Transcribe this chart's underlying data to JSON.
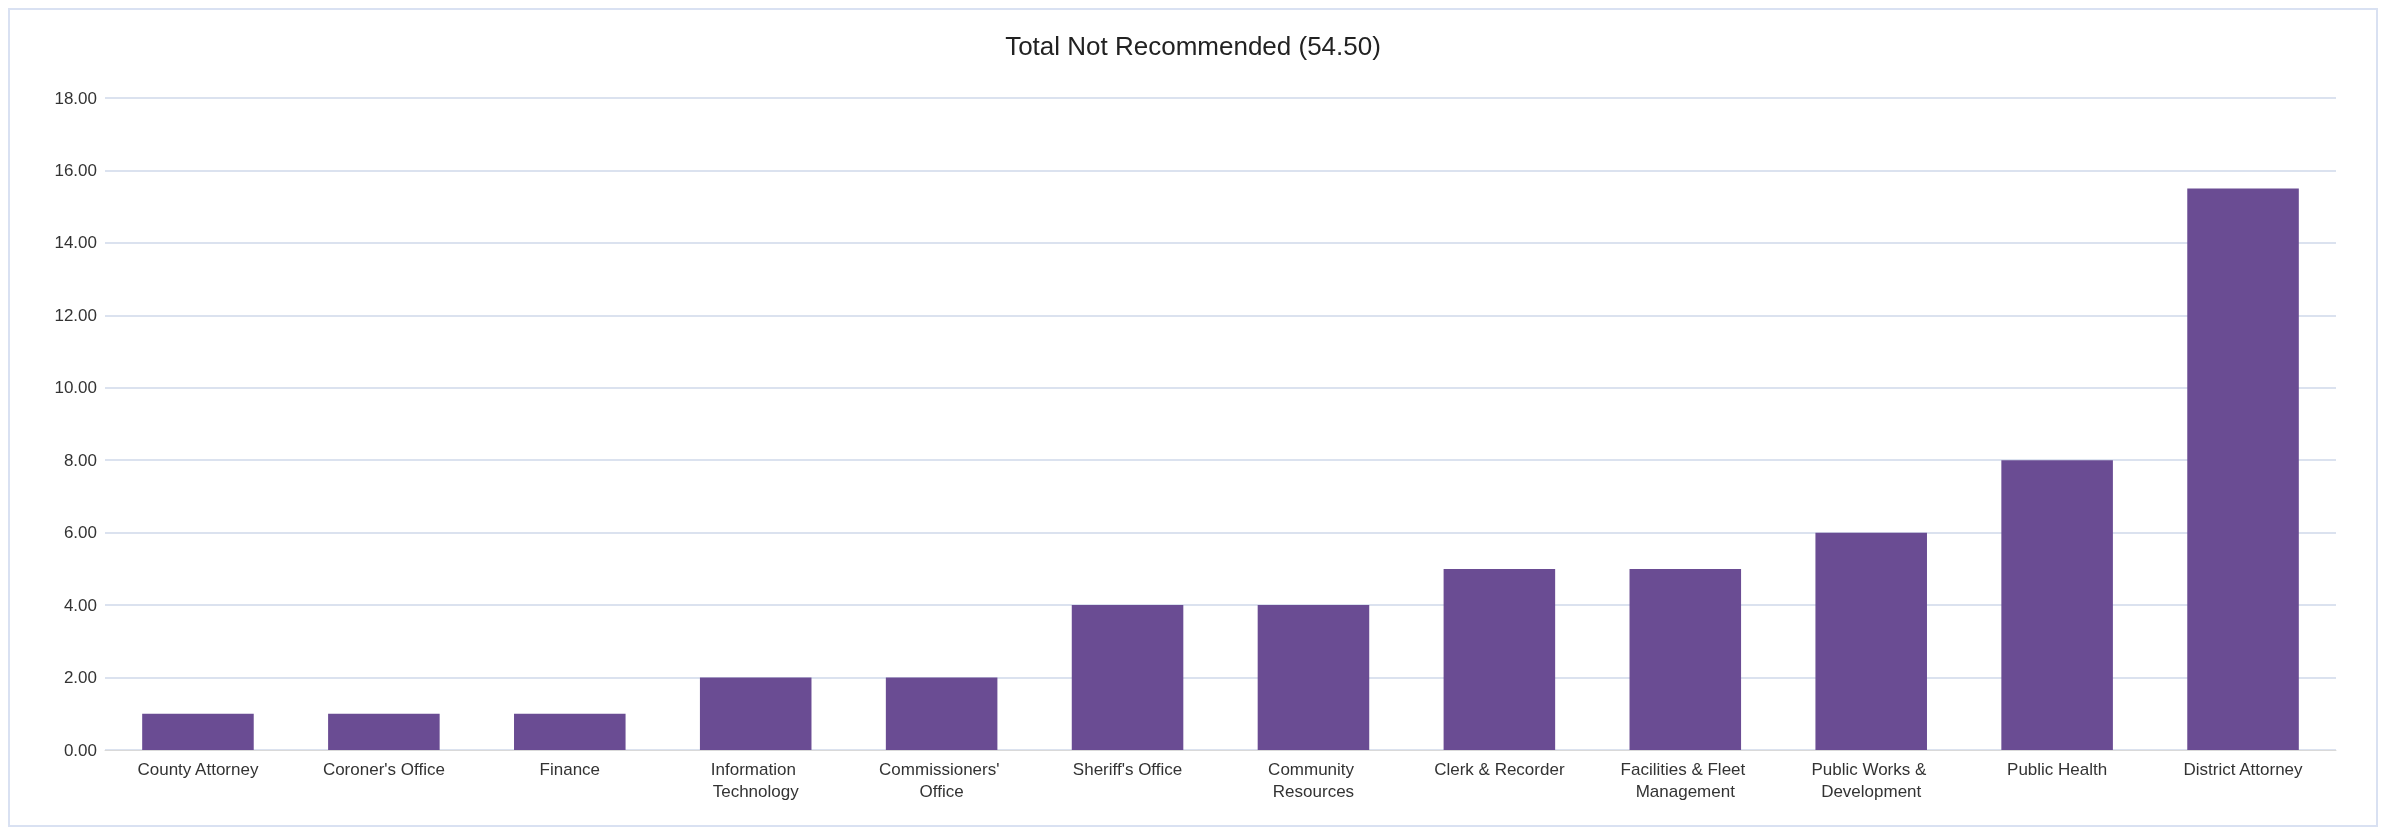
{
  "chart_data": {
    "type": "bar",
    "title": "Total Not Recommended (54.50)",
    "categories": [
      "County Attorney",
      "Coroner's Office",
      "Finance",
      "Information Technology",
      "Commissioners' Office",
      "Sheriff's Office",
      "Community Resources",
      "Clerk & Recorder",
      "Facilities & Fleet Management",
      "Public Works & Development",
      "Public Health",
      "District Attorney"
    ],
    "values": [
      1,
      1,
      1,
      2,
      2,
      4,
      4,
      5,
      5,
      6,
      8,
      15.5
    ],
    "color": "#6a4c93",
    "ylim": [
      0,
      18
    ],
    "yticks": [
      {
        "value": 0,
        "label": "0.00"
      },
      {
        "value": 2,
        "label": "2.00"
      },
      {
        "value": 4,
        "label": "4.00"
      },
      {
        "value": 6,
        "label": "6.00"
      },
      {
        "value": 8,
        "label": "8.00"
      },
      {
        "value": 10,
        "label": "10.00"
      },
      {
        "value": 12,
        "label": "12.00"
      },
      {
        "value": 14,
        "label": "14.00"
      },
      {
        "value": 16,
        "label": "16.00"
      },
      {
        "value": 18,
        "label": "18.00"
      }
    ],
    "grid": "y"
  }
}
